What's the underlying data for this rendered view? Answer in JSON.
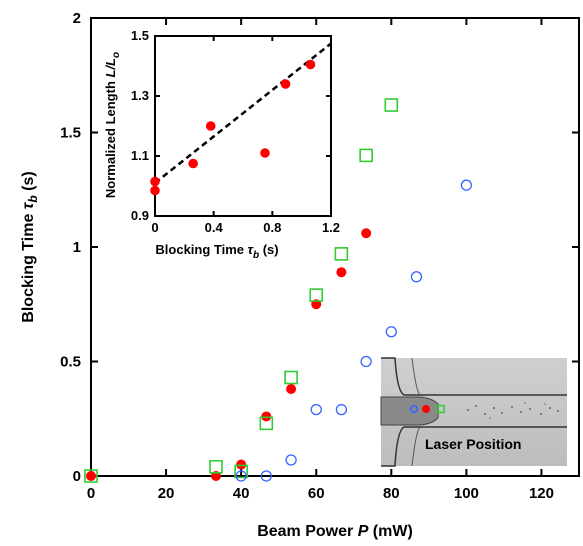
{
  "chart_data": [
    {
      "type": "scatter",
      "title": "",
      "xlabel": "Beam Power ",
      "xlabel_var": "P",
      "xlabel_unit": " (mW)",
      "ylabel": "Blocking Time ",
      "ylabel_var": "τ",
      "ylabel_sub": "b",
      "ylabel_unit": " (s)",
      "xlim": [
        0,
        130
      ],
      "ylim": [
        0,
        2
      ],
      "xticks": [
        0,
        20,
        40,
        60,
        80,
        100,
        120
      ],
      "yticks": [
        0,
        0.5,
        1,
        1.5,
        2
      ],
      "xtick_labels": [
        "0",
        "20",
        "40",
        "60",
        "80",
        "100",
        "120"
      ],
      "ytick_labels": [
        "0",
        "0.5",
        "1",
        "1.5",
        "2"
      ],
      "series": [
        {
          "marker": "filled-circle",
          "color": "#ff0000",
          "x": [
            0,
            33.3,
            40,
            46.7,
            53.3,
            60,
            66.7,
            73.3
          ],
          "y": [
            0,
            0,
            0.05,
            0.26,
            0.38,
            0.75,
            0.89,
            1.06
          ]
        },
        {
          "marker": "open-square",
          "color": "#33cc33",
          "x": [
            0,
            33.3,
            40,
            46.7,
            53.3,
            60,
            66.7,
            73.3,
            80
          ],
          "y": [
            0,
            0.04,
            0.02,
            0.23,
            0.43,
            0.79,
            0.97,
            1.4,
            1.62
          ]
        },
        {
          "marker": "open-circle",
          "color": "#3366ff",
          "x": [
            40,
            46.7,
            53.3,
            60,
            66.7,
            73.3,
            80,
            86.7,
            100
          ],
          "y": [
            0,
            0,
            0.07,
            0.29,
            0.29,
            0.5,
            0.63,
            0.87,
            1.27
          ]
        }
      ]
    },
    {
      "type": "scatter",
      "title": "",
      "xlabel": "Blocking Time ",
      "xlabel_var": "τ",
      "xlabel_sub": "b",
      "xlabel_unit": " (s)",
      "ylabel": "Normalized Length ",
      "ylabel_var": "L/L",
      "ylabel_sub": "o",
      "xlim": [
        0,
        1.2
      ],
      "ylim": [
        0.9,
        1.5
      ],
      "xticks": [
        0,
        0.4,
        0.8,
        1.2
      ],
      "yticks": [
        0.9,
        1.1,
        1.3,
        1.5
      ],
      "xtick_labels": [
        "0",
        "0.4",
        "0.8",
        "1.2"
      ],
      "ytick_labels": [
        "0.9",
        "1.1",
        "1.3",
        "1.5"
      ],
      "series": [
        {
          "marker": "filled-circle",
          "color": "#ff0000",
          "x": [
            0,
            0,
            0.26,
            0.38,
            0.75,
            0.89,
            1.06
          ],
          "y": [
            0.985,
            1.015,
            1.075,
            1.2,
            1.11,
            1.34,
            1.405
          ]
        }
      ],
      "fit_line": {
        "style": "dashed",
        "x": [
          0,
          1.2
        ],
        "y": [
          1.01,
          1.475
        ]
      }
    }
  ],
  "photo": {
    "label": "Laser Position"
  }
}
